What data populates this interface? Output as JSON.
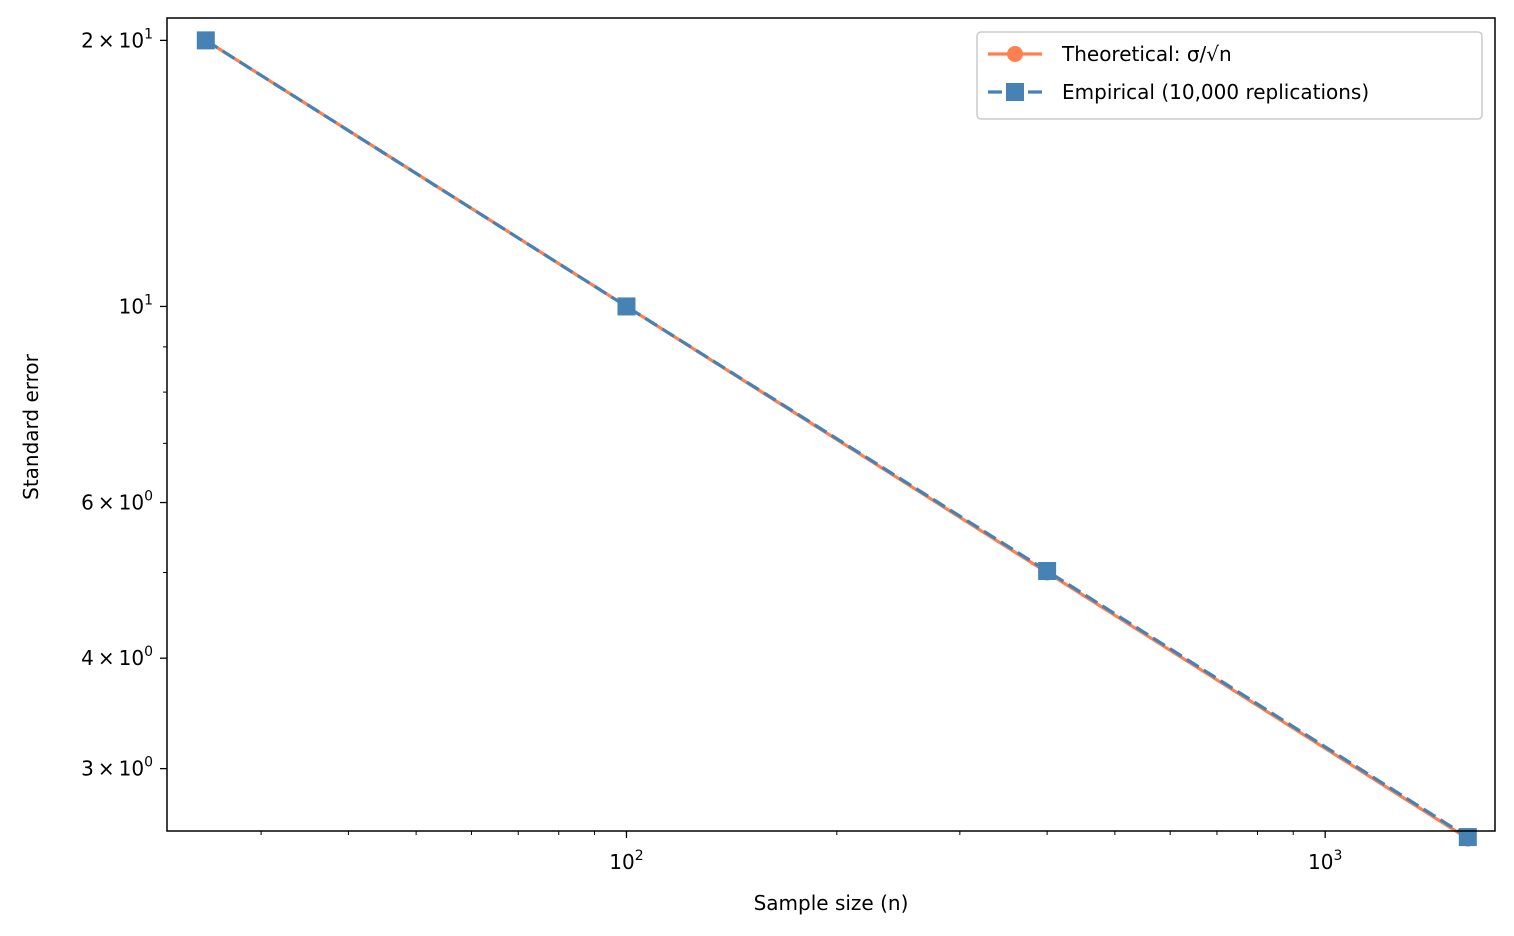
{
  "chart_data": {
    "type": "line",
    "xlabel": "Sample size (n)",
    "ylabel": "Standard error",
    "x_scale": "log",
    "y_scale": "log",
    "xlim": [
      22,
      1750
    ],
    "ylim": [
      2.55,
      21.2
    ],
    "grid": false,
    "legend_position": "top-right",
    "x_ticks": [
      {
        "value": 100,
        "base": "10",
        "exp": "2"
      },
      {
        "value": 1000,
        "base": "10",
        "exp": "3"
      }
    ],
    "y_ticks": [
      {
        "value": 20,
        "mant": "2",
        "base": "10",
        "exp": "1",
        "sci": true
      },
      {
        "value": 10,
        "mant": "",
        "base": "10",
        "exp": "1",
        "sci": false
      },
      {
        "value": 6,
        "mant": "6",
        "base": "10",
        "exp": "0",
        "sci": true
      },
      {
        "value": 4,
        "mant": "4",
        "base": "10",
        "exp": "0",
        "sci": true
      },
      {
        "value": 3,
        "mant": "3",
        "base": "10",
        "exp": "0",
        "sci": true
      }
    ],
    "x": [
      25,
      100,
      400,
      1600
    ],
    "series": [
      {
        "name": "Theoretical: σ/√n",
        "values": [
          20.0,
          10.0,
          5.0,
          2.5
        ],
        "color": "#ff7f50",
        "marker": "circle",
        "linestyle": "solid"
      },
      {
        "name": "Empirical (10,000 replications)",
        "values": [
          20.0,
          10.0,
          5.02,
          2.51
        ],
        "color": "#4682b4",
        "marker": "square",
        "linestyle": "dashed"
      }
    ]
  }
}
